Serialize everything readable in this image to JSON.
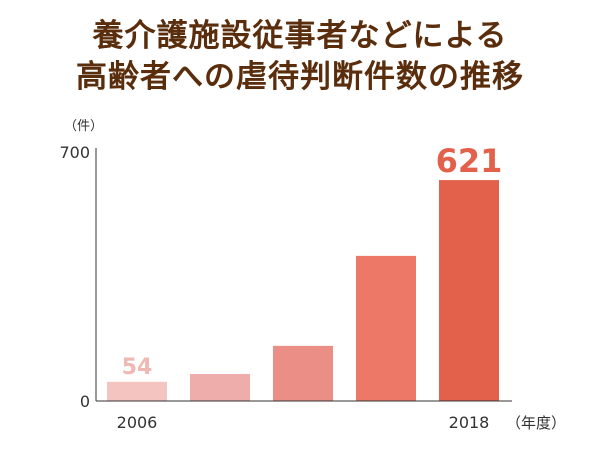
{
  "title": {
    "line1": "養介護施設従事者などによる",
    "line2": "高齢者への虐待判断件数の推移"
  },
  "chart_data": {
    "type": "bar",
    "categories": [
      "2006",
      "",
      "",
      "",
      "2018"
    ],
    "values": [
      54,
      76,
      155,
      408,
      621
    ],
    "data_labels": [
      "54",
      "",
      "",
      "",
      "621"
    ],
    "ylabel": "（件）",
    "xlabel": "（年度）",
    "ylim": [
      0,
      700
    ],
    "yticks": [
      0,
      700
    ],
    "colors": [
      "#f4c5c0",
      "#eeadab",
      "#eb8f86",
      "#ee7867",
      "#e3604a"
    ],
    "label_colors": [
      "#f0b8b2",
      "",
      "",
      "",
      "#e3604a"
    ],
    "axis_color": "#333333"
  }
}
